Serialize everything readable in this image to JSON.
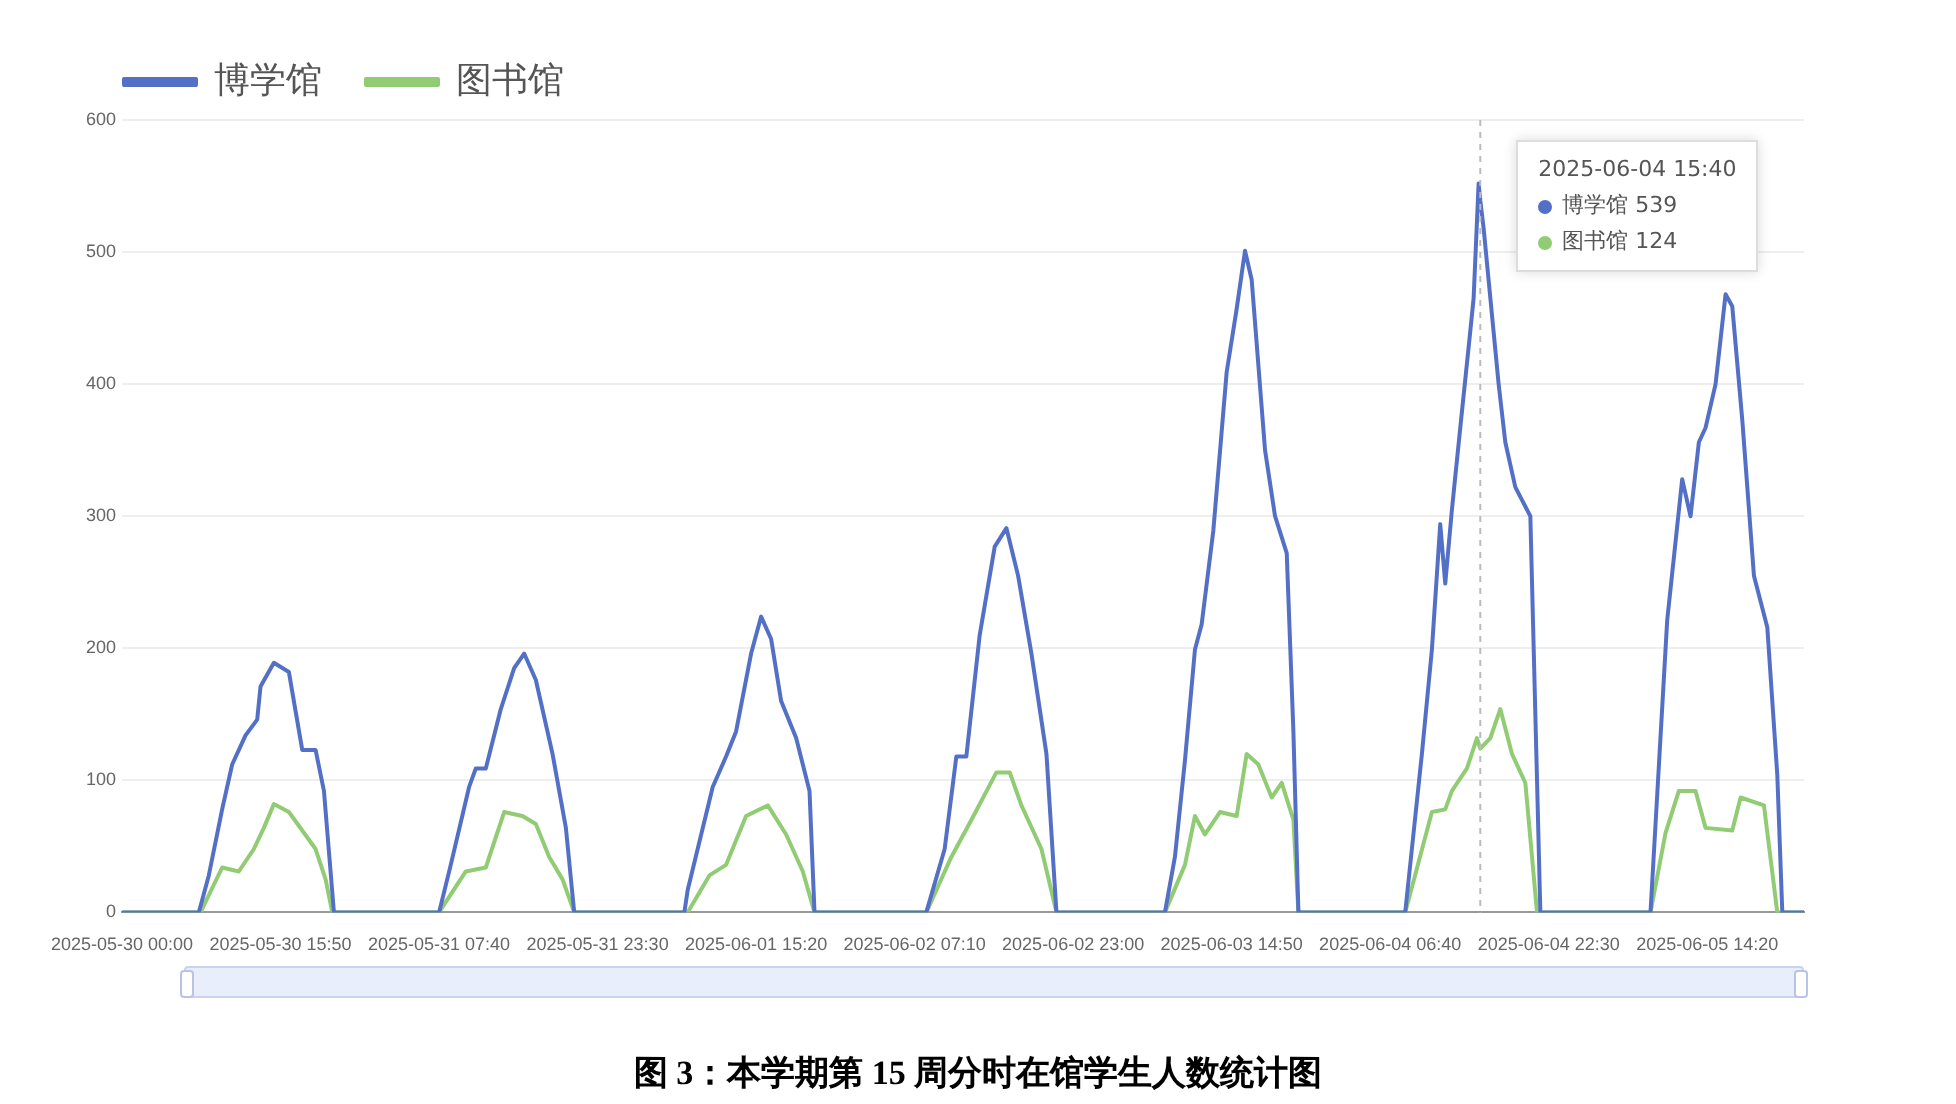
{
  "chart_data": {
    "type": "line",
    "title": "图 3：本学期第 15 周分时在馆学生人数统计图",
    "xlim": [
      "2025-05-30T00:00",
      "2025-06-06T00:00"
    ],
    "xticks": [
      {
        "value": "2025-05-30T00:00",
        "label": "2025-05-30 00:00"
      },
      {
        "value": "2025-05-30T15:50",
        "label": "2025-05-30 15:50"
      },
      {
        "value": "2025-05-31T07:40",
        "label": "2025-05-31 07:40"
      },
      {
        "value": "2025-05-31T23:30",
        "label": "2025-05-31 23:30"
      },
      {
        "value": "2025-06-01T15:20",
        "label": "2025-06-01 15:20"
      },
      {
        "value": "2025-06-02T07:10",
        "label": "2025-06-02 07:10"
      },
      {
        "value": "2025-06-02T23:00",
        "label": "2025-06-02 23:00"
      },
      {
        "value": "2025-06-03T14:50",
        "label": "2025-06-03 14:50"
      },
      {
        "value": "2025-06-04T06:40",
        "label": "2025-06-04 06:40"
      },
      {
        "value": "2025-06-04T22:30",
        "label": "2025-06-04 22:30"
      },
      {
        "value": "2025-06-05T14:20",
        "label": "2025-06-05 14:20"
      }
    ],
    "ref_lines": [
      {
        "axis": "x",
        "value": "2025-06-04T15:40",
        "color": "#bbbbbb",
        "line_style": "dashed"
      }
    ],
    "ylim": [
      0,
      600
    ],
    "yticks": [
      0,
      100,
      200,
      300,
      400,
      500,
      600
    ],
    "grid": "y",
    "legend": "top left",
    "annotations": [
      {
        "text": "2025-06-04 15:40\n博学馆 539\n图书馆 124",
        "x": "2025-06-04T15:40",
        "y": 539
      }
    ],
    "series": [
      {
        "name": "博学馆",
        "color": "#5470c6",
        "x": [
          "2025-05-30T00:00",
          "2025-05-30T07:40",
          "2025-05-30T08:40",
          "2025-05-30T10:00",
          "2025-05-30T11:00",
          "2025-05-30T12:20",
          "2025-05-30T13:30",
          "2025-05-30T13:50",
          "2025-05-30T15:10",
          "2025-05-30T16:40",
          "2025-05-30T18:00",
          "2025-05-30T19:20",
          "2025-05-30T20:10",
          "2025-05-30T21:10",
          "2025-05-31T07:40",
          "2025-05-31T08:50",
          "2025-05-31T10:40",
          "2025-05-31T11:20",
          "2025-05-31T12:20",
          "2025-05-31T13:50",
          "2025-05-31T15:10",
          "2025-05-31T16:10",
          "2025-05-31T17:20",
          "2025-05-31T19:00",
          "2025-05-31T20:20",
          "2025-05-31T21:10",
          "2025-06-01T08:10",
          "2025-06-01T08:30",
          "2025-06-01T11:00",
          "2025-06-01T12:20",
          "2025-06-01T13:20",
          "2025-06-01T14:50",
          "2025-06-01T15:50",
          "2025-06-01T16:50",
          "2025-06-01T17:50",
          "2025-06-01T19:20",
          "2025-06-01T20:40",
          "2025-06-01T21:10",
          "2025-06-02T08:20",
          "2025-06-02T10:10",
          "2025-06-02T11:20",
          "2025-06-02T12:20",
          "2025-06-02T13:40",
          "2025-06-02T15:10",
          "2025-06-02T16:20",
          "2025-06-02T17:30",
          "2025-06-02T18:50",
          "2025-06-02T20:20",
          "2025-06-02T21:20",
          "2025-06-03T08:10",
          "2025-06-03T09:10",
          "2025-06-03T10:10",
          "2025-06-03T11:10",
          "2025-06-03T11:50",
          "2025-06-03T13:00",
          "2025-06-03T14:20",
          "2025-06-03T15:20",
          "2025-06-03T16:10",
          "2025-06-03T16:50",
          "2025-06-03T18:10",
          "2025-06-03T19:10",
          "2025-06-03T20:20",
          "2025-06-03T21:00",
          "2025-06-03T21:30",
          "2025-06-04T08:10",
          "2025-06-04T09:50",
          "2025-06-04T10:50",
          "2025-06-04T11:40",
          "2025-06-04T12:10",
          "2025-06-04T12:50",
          "2025-06-04T13:40",
          "2025-06-04T14:40",
          "2025-06-04T15:00",
          "2025-06-04T15:30",
          "2025-06-04T15:40",
          "2025-06-04T16:00",
          "2025-06-04T17:30",
          "2025-06-04T18:10",
          "2025-06-04T19:10",
          "2025-06-04T20:40",
          "2025-06-04T21:40",
          "2025-06-05T08:40",
          "2025-06-05T10:20",
          "2025-06-05T11:50",
          "2025-06-05T12:40",
          "2025-06-05T13:30",
          "2025-06-05T14:10",
          "2025-06-05T15:10",
          "2025-06-05T16:10",
          "2025-06-05T16:50",
          "2025-06-05T17:50",
          "2025-06-05T19:00",
          "2025-06-05T20:20",
          "2025-06-05T21:20",
          "2025-06-05T21:50",
          "2025-06-06T00:00"
        ],
        "values": [
          0,
          0,
          28,
          78,
          112,
          134,
          146,
          171,
          189,
          182,
          123,
          123,
          92,
          0,
          0,
          36,
          95,
          109,
          109,
          154,
          185,
          196,
          176,
          120,
          64,
          0,
          0,
          17,
          95,
          118,
          137,
          196,
          224,
          207,
          160,
          132,
          92,
          0,
          0,
          48,
          118,
          118,
          210,
          277,
          291,
          255,
          196,
          120,
          0,
          0,
          42,
          115,
          199,
          218,
          289,
          409,
          457,
          501,
          479,
          350,
          300,
          272,
          137,
          0,
          0,
          120,
          199,
          294,
          249,
          305,
          367,
          440,
          465,
          552,
          539,
          518,
          400,
          356,
          322,
          300,
          0,
          0,
          221,
          328,
          300,
          356,
          367,
          400,
          468,
          459,
          373,
          255,
          216,
          104,
          0,
          0
        ]
      },
      {
        "name": "图书馆",
        "color": "#91cc75",
        "x": [
          "2025-05-30T00:00",
          "2025-05-30T07:50",
          "2025-05-30T10:00",
          "2025-05-30T11:40",
          "2025-05-30T13:10",
          "2025-05-30T14:10",
          "2025-05-30T15:10",
          "2025-05-30T16:40",
          "2025-05-30T18:00",
          "2025-05-30T19:20",
          "2025-05-30T20:20",
          "2025-05-30T21:00",
          "2025-05-31T07:40",
          "2025-05-31T10:20",
          "2025-05-31T12:20",
          "2025-05-31T14:10",
          "2025-05-31T16:00",
          "2025-05-31T17:20",
          "2025-05-31T18:40",
          "2025-05-31T20:00",
          "2025-05-31T21:10",
          "2025-06-01T08:30",
          "2025-06-01T10:40",
          "2025-06-01T12:20",
          "2025-06-01T14:20",
          "2025-06-01T16:30",
          "2025-06-01T18:20",
          "2025-06-01T20:00",
          "2025-06-01T21:10",
          "2025-06-02T08:20",
          "2025-06-02T10:50",
          "2025-06-02T12:50",
          "2025-06-02T15:20",
          "2025-06-02T16:40",
          "2025-06-02T17:50",
          "2025-06-02T19:50",
          "2025-06-02T21:20",
          "2025-06-03T08:10",
          "2025-06-03T10:10",
          "2025-06-03T11:10",
          "2025-06-03T12:10",
          "2025-06-03T13:40",
          "2025-06-03T15:20",
          "2025-06-03T16:20",
          "2025-06-03T17:30",
          "2025-06-03T18:50",
          "2025-06-03T19:50",
          "2025-06-03T21:00",
          "2025-06-03T21:30",
          "2025-06-04T08:10",
          "2025-06-04T10:50",
          "2025-06-04T12:10",
          "2025-06-04T12:50",
          "2025-06-04T14:20",
          "2025-06-04T15:20",
          "2025-06-04T15:40",
          "2025-06-04T16:40",
          "2025-06-04T17:40",
          "2025-06-04T18:50",
          "2025-06-04T20:10",
          "2025-06-04T21:20",
          "2025-06-05T08:40",
          "2025-06-05T10:10",
          "2025-06-05T11:30",
          "2025-06-05T13:10",
          "2025-06-05T14:10",
          "2025-06-05T16:50",
          "2025-06-05T17:40",
          "2025-06-05T20:00",
          "2025-06-05T21:20",
          "2025-06-06T00:00"
        ],
        "values": [
          0,
          0,
          34,
          31,
          48,
          64,
          82,
          76,
          62,
          48,
          25,
          0,
          0,
          31,
          34,
          76,
          73,
          67,
          42,
          25,
          0,
          0,
          28,
          36,
          73,
          81,
          59,
          31,
          0,
          0,
          42,
          70,
          106,
          106,
          81,
          48,
          0,
          0,
          36,
          73,
          59,
          76,
          73,
          120,
          112,
          87,
          98,
          70,
          0,
          0,
          76,
          78,
          92,
          109,
          132,
          124,
          132,
          154,
          120,
          98,
          0,
          0,
          60,
          92,
          92,
          64,
          62,
          87,
          81,
          0,
          0
        ]
      }
    ]
  }
}
